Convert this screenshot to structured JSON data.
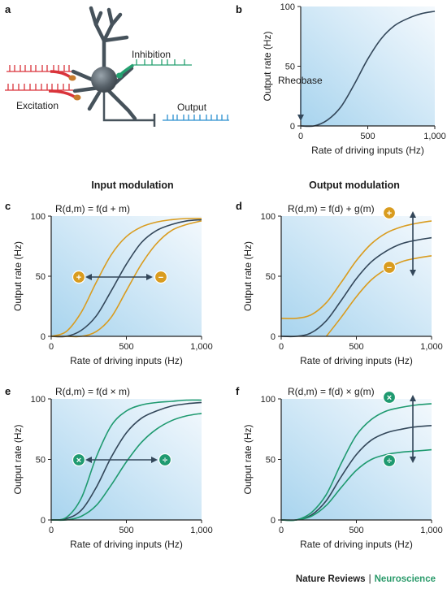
{
  "figure": {
    "panel_labels": [
      "a",
      "b",
      "c",
      "d",
      "e",
      "f"
    ],
    "section_titles": {
      "left": "Input modulation",
      "right": "Output modulation"
    },
    "neuron": {
      "inhibition_label": "Inhibition",
      "excitation_label": "Excitation",
      "output_label": "Output"
    },
    "equations": {
      "c": "R(d,m) = f(d + m)",
      "d": "R(d,m) = f(d) + g(m)",
      "e": "R(d,m) = f(d × m)",
      "f": "R(d,m) = f(d) × g(m)"
    },
    "badges": {
      "c": [
        "+",
        "−"
      ],
      "d": [
        "+",
        "−"
      ],
      "e": [
        "×",
        "÷"
      ],
      "f": [
        "×",
        "÷"
      ]
    },
    "rheobase_label": "Rheobase",
    "colors": {
      "base_curve": "#33475a",
      "additive": "#d99c1f",
      "multiplicative": "#1f9a70",
      "excitation": "#d9333a",
      "inhibition": "#25a070",
      "output": "#2a8fcf",
      "panel_bg_left": "#9fd0ec",
      "panel_bg_right": "#f1f8fd"
    }
  },
  "footer": {
    "journal": "Nature Reviews",
    "section": "Neuroscience"
  },
  "chart_data": [
    {
      "id": "b",
      "type": "line",
      "xlabel": "Rate of driving inputs (Hz)",
      "ylabel": "Output rate (Hz)",
      "xlim": [
        0,
        1000
      ],
      "ylim": [
        0,
        100
      ],
      "xticks": [
        "0",
        "500",
        "1,000"
      ],
      "yticks": [
        "0",
        "50",
        "100"
      ],
      "series": [
        {
          "role": "base",
          "x": [
            0,
            100,
            200,
            300,
            400,
            500,
            600,
            700,
            800,
            900,
            1000
          ],
          "values": [
            0,
            0,
            5,
            16,
            35,
            56,
            73,
            84,
            90,
            94,
            96
          ]
        }
      ]
    },
    {
      "id": "c",
      "type": "line",
      "xlabel": "Rate of driving inputs (Hz)",
      "ylabel": "Output rate (Hz)",
      "xlim": [
        0,
        1000
      ],
      "ylim": [
        0,
        100
      ],
      "xticks": [
        "0",
        "500",
        "1,000"
      ],
      "yticks": [
        "0",
        "50",
        "100"
      ],
      "series": [
        {
          "role": "base",
          "x": [
            0,
            100,
            200,
            300,
            400,
            500,
            600,
            700,
            800,
            900,
            1000
          ],
          "values": [
            0,
            0,
            5,
            17,
            38,
            60,
            78,
            88,
            93,
            96,
            97
          ]
        },
        {
          "role": "additive",
          "x": [
            0,
            100,
            200,
            300,
            400,
            500,
            600,
            700,
            800,
            900,
            1000
          ],
          "values": [
            0,
            4,
            20,
            45,
            68,
            83,
            91,
            95,
            97,
            98,
            98
          ]
        },
        {
          "role": "additive",
          "x": [
            0,
            100,
            200,
            300,
            400,
            500,
            600,
            700,
            800,
            900,
            1000
          ],
          "values": [
            0,
            0,
            0,
            4,
            16,
            38,
            60,
            77,
            88,
            93,
            96
          ]
        }
      ]
    },
    {
      "id": "d",
      "type": "line",
      "xlabel": "Rate of driving inputs (Hz)",
      "ylabel": "Output rate (Hz)",
      "xlim": [
        0,
        1000
      ],
      "ylim": [
        0,
        100
      ],
      "xticks": [
        "0",
        "500",
        "1,000"
      ],
      "yticks": [
        "0",
        "50",
        "100"
      ],
      "series": [
        {
          "role": "base",
          "x": [
            0,
            100,
            200,
            300,
            400,
            500,
            600,
            700,
            800,
            900,
            1000
          ],
          "values": [
            0,
            0,
            3,
            13,
            30,
            48,
            62,
            71,
            77,
            80,
            82
          ]
        },
        {
          "role": "additive",
          "x": [
            0,
            100,
            200,
            300,
            400,
            500,
            600,
            700,
            800,
            900,
            1000
          ],
          "values": [
            15,
            15,
            18,
            28,
            45,
            63,
            77,
            86,
            91,
            94,
            96
          ]
        },
        {
          "role": "additive",
          "x": [
            300,
            400,
            500,
            600,
            700,
            800,
            900,
            1000
          ],
          "values": [
            0,
            16,
            33,
            47,
            56,
            62,
            65,
            67
          ]
        }
      ]
    },
    {
      "id": "e",
      "type": "line",
      "xlabel": "Rate of driving inputs (Hz)",
      "ylabel": "Output rate (Hz)",
      "xlim": [
        0,
        1000
      ],
      "ylim": [
        0,
        100
      ],
      "xticks": [
        "0",
        "500",
        "1,000"
      ],
      "yticks": [
        "0",
        "50",
        "100"
      ],
      "series": [
        {
          "role": "base",
          "x": [
            0,
            100,
            200,
            300,
            400,
            500,
            600,
            700,
            800,
            900,
            1000
          ],
          "values": [
            0,
            1,
            8,
            27,
            52,
            72,
            84,
            90,
            94,
            96,
            97
          ]
        },
        {
          "role": "multiplicative",
          "x": [
            0,
            100,
            200,
            300,
            400,
            500,
            600,
            700,
            800,
            900,
            1000
          ],
          "values": [
            0,
            2,
            18,
            52,
            78,
            90,
            95,
            97,
            98,
            99,
            99
          ]
        },
        {
          "role": "multiplicative",
          "x": [
            0,
            100,
            200,
            300,
            400,
            500,
            600,
            700,
            800,
            900,
            1000
          ],
          "values": [
            0,
            0,
            3,
            12,
            29,
            48,
            64,
            75,
            82,
            86,
            88
          ]
        }
      ]
    },
    {
      "id": "f",
      "type": "line",
      "xlabel": "Rate of driving inputs (Hz)",
      "ylabel": "Output rate (Hz)",
      "xlim": [
        0,
        1000
      ],
      "ylim": [
        0,
        100
      ],
      "xticks": [
        "0",
        "500",
        "1,000"
      ],
      "yticks": [
        "0",
        "50",
        "100"
      ],
      "series": [
        {
          "role": "base",
          "x": [
            0,
            100,
            200,
            300,
            400,
            500,
            600,
            700,
            800,
            900,
            1000
          ],
          "values": [
            0,
            0,
            4,
            16,
            36,
            54,
            66,
            72,
            75,
            77,
            78
          ]
        },
        {
          "role": "multiplicative",
          "x": [
            0,
            100,
            200,
            300,
            400,
            500,
            600,
            700,
            800,
            900,
            1000
          ],
          "values": [
            0,
            0,
            6,
            21,
            47,
            70,
            83,
            90,
            93,
            95,
            96
          ]
        },
        {
          "role": "multiplicative",
          "x": [
            0,
            100,
            200,
            300,
            400,
            500,
            600,
            700,
            800,
            900,
            1000
          ],
          "values": [
            0,
            0,
            3,
            12,
            27,
            41,
            50,
            54,
            56,
            57,
            58
          ]
        }
      ]
    }
  ]
}
